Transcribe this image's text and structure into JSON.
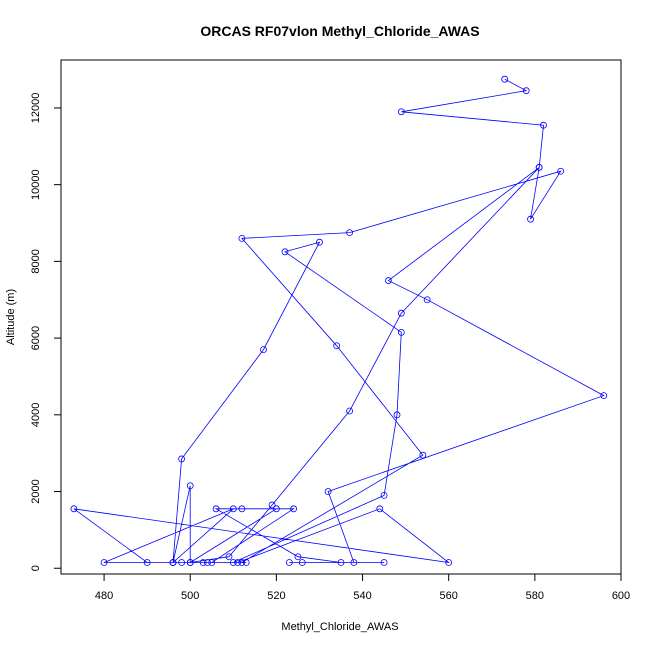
{
  "chart_data": {
    "type": "line",
    "title": "ORCAS RF07vlon Methyl_Chloride_AWAS",
    "xlabel": "Methyl_Chloride_AWAS",
    "ylabel": "Altitude (m)",
    "xlim": [
      470,
      600
    ],
    "ylim": [
      -150,
      13250
    ],
    "xticks": [
      480,
      500,
      520,
      540,
      560,
      580,
      600
    ],
    "yticks": [
      0,
      2000,
      4000,
      6000,
      8000,
      10000,
      12000
    ],
    "grid": false,
    "legend": "none",
    "series": [
      {
        "color": "#0000ff",
        "marker": "open-circle",
        "points": [
          [
            573,
            12750
          ],
          [
            578,
            12450
          ],
          [
            549,
            11900
          ],
          [
            582,
            11550
          ],
          [
            581,
            10450
          ],
          [
            546,
            7500
          ],
          [
            555,
            7000
          ],
          [
            596,
            4500
          ],
          [
            532,
            2000
          ],
          [
            538,
            150
          ],
          [
            545,
            150
          ],
          [
            526,
            150
          ],
          [
            523,
            150
          ],
          [
            535,
            150
          ],
          [
            525,
            300
          ],
          [
            506,
            1550
          ],
          [
            524,
            1550
          ],
          [
            505,
            150
          ],
          [
            504,
            150
          ],
          [
            480,
            150
          ],
          [
            510,
            1550
          ],
          [
            496,
            150
          ],
          [
            490,
            150
          ],
          [
            473,
            1550
          ],
          [
            560,
            150
          ],
          [
            544,
            1550
          ],
          [
            511,
            150
          ],
          [
            513,
            150
          ],
          [
            503,
            150
          ],
          [
            498,
            150
          ],
          [
            500,
            150
          ],
          [
            509,
            300
          ],
          [
            519,
            1650
          ],
          [
            537,
            4100
          ],
          [
            549,
            6650
          ],
          [
            581,
            10450
          ],
          [
            579,
            9100
          ],
          [
            586,
            10350
          ],
          [
            537,
            8750
          ],
          [
            512,
            8600
          ],
          [
            534,
            5800
          ],
          [
            554,
            2950
          ],
          [
            512,
            150
          ],
          [
            496,
            150
          ],
          [
            510,
            150
          ],
          [
            545,
            1900
          ],
          [
            548,
            4000
          ],
          [
            549,
            6150
          ],
          [
            522,
            8250
          ],
          [
            530,
            8500
          ],
          [
            517,
            5700
          ],
          [
            498,
            2850
          ],
          [
            496,
            150
          ],
          [
            500,
            2150
          ],
          [
            500,
            150
          ],
          [
            520,
            1550
          ],
          [
            512,
            1550
          ]
        ]
      }
    ]
  }
}
